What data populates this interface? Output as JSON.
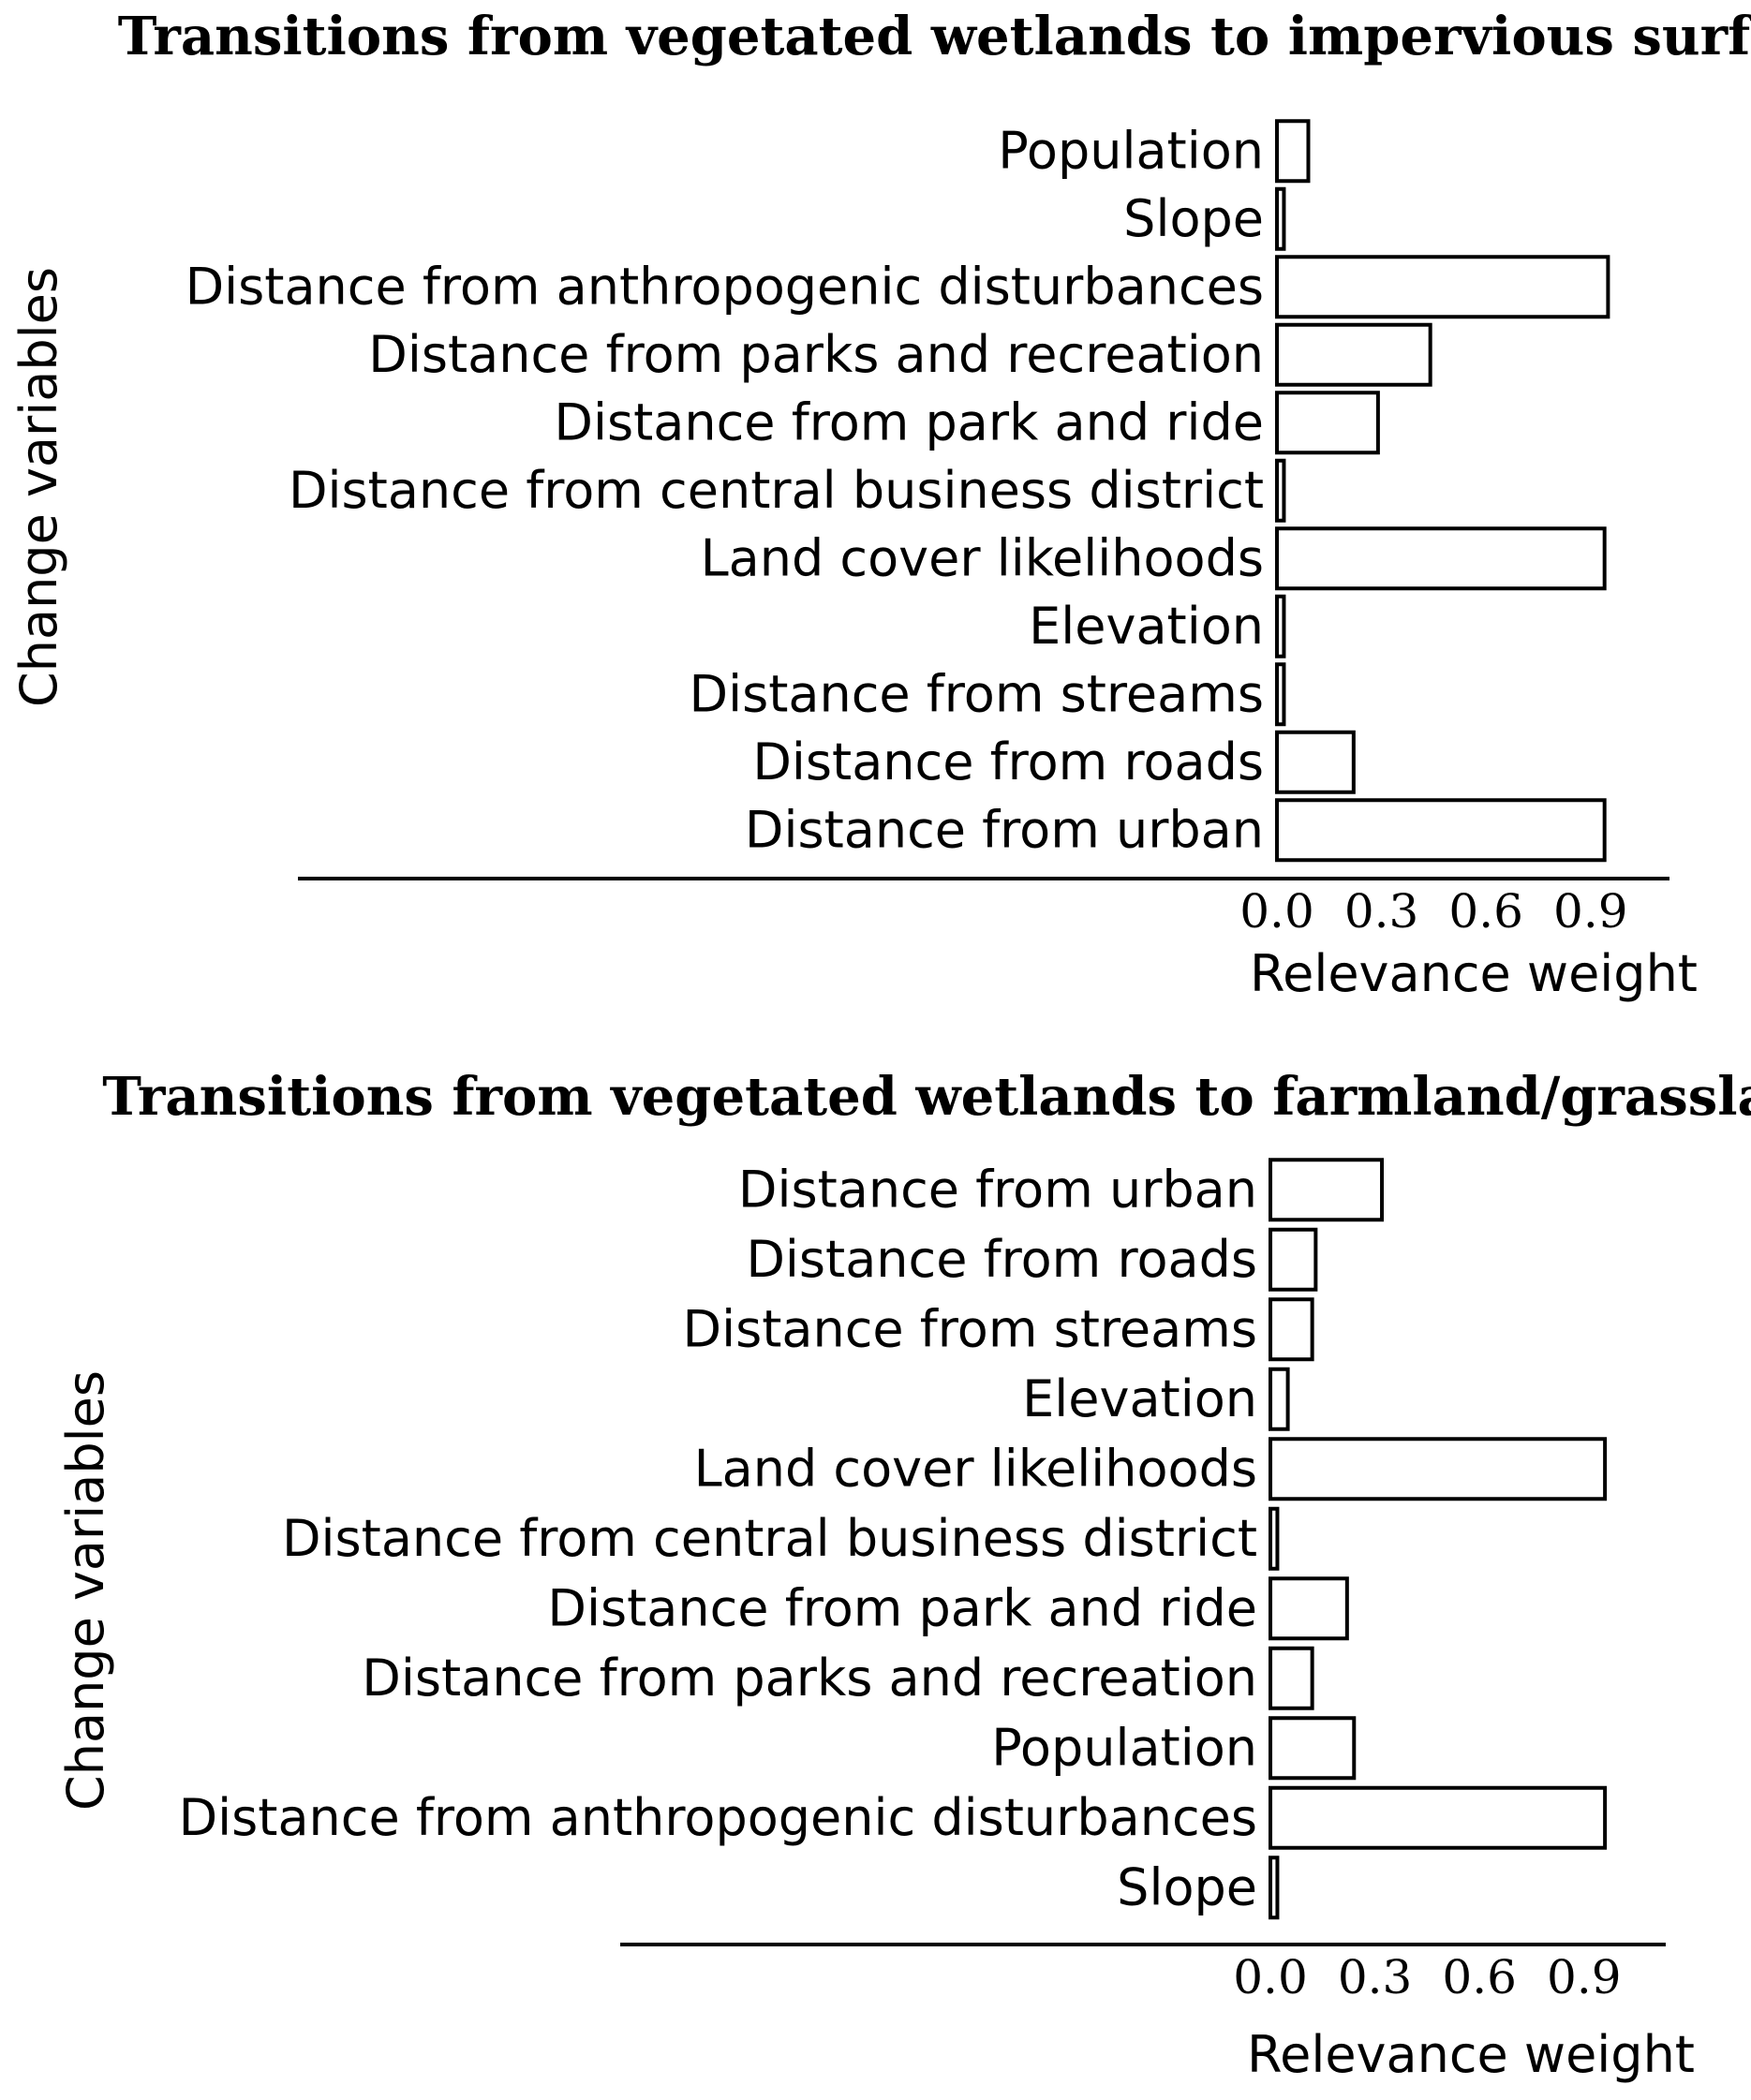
{
  "chart_data": [
    {
      "type": "bar",
      "orientation": "horizontal",
      "title": "Transitions from vegetated wetlands to impervious surface",
      "categories": [
        "Population",
        "Slope",
        "Distance from anthropogenic disturbances",
        "Distance from parks and recreation",
        "Distance from park and ride",
        "Distance from central business district",
        "Land cover likelihoods",
        "Elevation",
        "Distance from streams",
        "Distance from roads",
        "Distance from urban"
      ],
      "values": [
        0.09,
        0.02,
        0.95,
        0.44,
        0.29,
        0.02,
        0.94,
        0.02,
        0.02,
        0.22,
        0.94
      ],
      "xlabel": "Relevance weight",
      "ylabel": "Change variables",
      "xticks": [
        "0.0",
        "0.3",
        "0.6",
        "0.9"
      ],
      "xlim": [
        0,
        1.1
      ]
    },
    {
      "type": "bar",
      "orientation": "horizontal",
      "title": "Transitions from vegetated wetlands to farmland/grassland",
      "categories": [
        "Distance from urban",
        "Distance from roads",
        "Distance from streams",
        "Elevation",
        "Land cover likelihoods",
        "Distance from central business district",
        "Distance from park and ride",
        "Distance from parks and recreation",
        "Population",
        "Distance from anthropogenic disturbances",
        "Slope"
      ],
      "values": [
        0.32,
        0.13,
        0.12,
        0.05,
        0.96,
        0.02,
        0.22,
        0.12,
        0.24,
        0.96,
        0.02
      ],
      "xlabel": "Relevance weight",
      "ylabel": "Change variables",
      "xticks": [
        "0.0",
        "0.3",
        "0.6",
        "0.9"
      ],
      "xlim": [
        0,
        1.1
      ]
    }
  ]
}
